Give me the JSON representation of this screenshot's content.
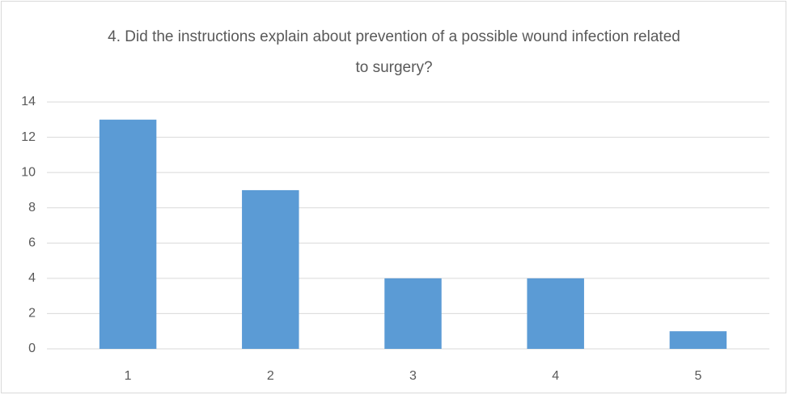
{
  "chart_data": {
    "type": "bar",
    "title": "4. Did the instructions explain about prevention of a possible wound infection related to surgery?",
    "categories": [
      "1",
      "2",
      "3",
      "4",
      "5"
    ],
    "values": [
      13,
      9,
      4,
      4,
      1
    ],
    "color": "#5b9bd5",
    "ylim": [
      0,
      14
    ],
    "yticks": [
      0,
      2,
      4,
      6,
      8,
      10,
      12,
      14
    ],
    "grid": true
  }
}
